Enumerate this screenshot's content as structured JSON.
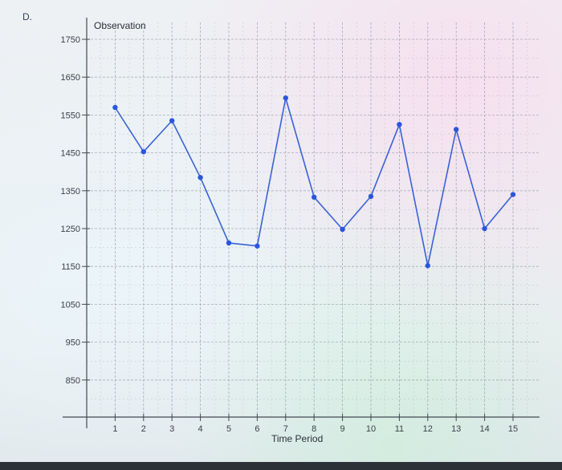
{
  "option_label": "D.",
  "chart_data": {
    "type": "line",
    "title": "",
    "xlabel": "Time Period",
    "ylabel": "Observation",
    "x": [
      1,
      2,
      3,
      4,
      5,
      6,
      7,
      8,
      9,
      10,
      11,
      12,
      13,
      14,
      15
    ],
    "series": [
      {
        "values": [
          1570,
          1453,
          1535,
          1385,
          1212,
          1204,
          1595,
          1333,
          1248,
          1335,
          1525,
          1152,
          1512,
          1250,
          1340
        ]
      }
    ],
    "y_ticks": [
      850,
      950,
      1050,
      1150,
      1250,
      1350,
      1450,
      1550,
      1650,
      1750
    ],
    "x_ticks": [
      1,
      2,
      3,
      4,
      5,
      6,
      7,
      8,
      9,
      10,
      11,
      12,
      13,
      14,
      15
    ],
    "ylim": [
      750,
      1765
    ],
    "xlim": [
      0,
      15.5
    ],
    "grid": true,
    "colors": {
      "line": "#3a62d6",
      "marker": "#2a55e0",
      "grid": "#9aa0a8",
      "axis": "#444a52"
    }
  }
}
